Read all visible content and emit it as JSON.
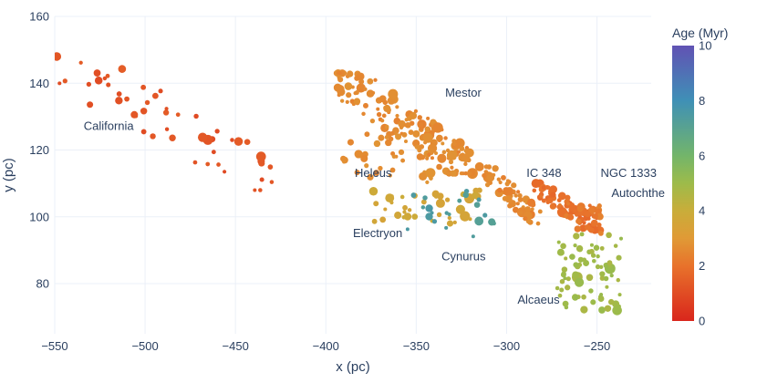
{
  "chart_data": {
    "type": "scatter",
    "title": "",
    "xlabel": "x (pc)",
    "ylabel": "y (pc)",
    "xlim": [
      -550,
      -220
    ],
    "ylim": [
      65,
      160
    ],
    "x_ticks": [
      -550,
      -500,
      -450,
      -400,
      -350,
      -300,
      -250
    ],
    "x_tick_labels": [
      "−550",
      "−500",
      "−450",
      "−400",
      "−350",
      "−300",
      "−250"
    ],
    "y_ticks": [
      80,
      100,
      120,
      140,
      160
    ],
    "y_tick_labels": [
      "80",
      "100",
      "120",
      "140",
      "160"
    ],
    "grid": true,
    "colorbar": {
      "title": "Age (Myr)",
      "range": [
        0,
        10
      ],
      "ticks": [
        0,
        2,
        4,
        6,
        8,
        10
      ],
      "tick_labels": [
        "0",
        "2",
        "4",
        "6",
        "8",
        "10"
      ],
      "colorscale": [
        [
          0.0,
          "#d9261c"
        ],
        [
          0.2,
          "#e8722b"
        ],
        [
          0.3,
          "#e09a36"
        ],
        [
          0.4,
          "#c9ad3a"
        ],
        [
          0.5,
          "#9dbb4a"
        ],
        [
          0.6,
          "#73b56a"
        ],
        [
          0.8,
          "#3f90b6"
        ],
        [
          1.0,
          "#6152b4"
        ]
      ]
    },
    "annotations": [
      {
        "text": "California",
        "x": -534,
        "y": 126
      },
      {
        "text": "Mestor",
        "x": -334,
        "y": 136
      },
      {
        "text": "Heleus",
        "x": -384,
        "y": 112
      },
      {
        "text": "IC 348",
        "x": -289,
        "y": 112
      },
      {
        "text": "NGC 1333",
        "x": -248,
        "y": 112
      },
      {
        "text": "Autochthe",
        "x": -242,
        "y": 106
      },
      {
        "text": "Electryon",
        "x": -385,
        "y": 94
      },
      {
        "text": "Cynurus",
        "x": -336,
        "y": 87
      },
      {
        "text": "Alcaeus",
        "x": -294,
        "y": 74
      }
    ],
    "clusters": [
      {
        "name": "California",
        "age": 1.2,
        "x_range": [
          -552,
          -426
        ],
        "y_range": [
          108,
          148
        ],
        "count": 55
      },
      {
        "name": "Mestor",
        "age": 2.6,
        "x_range": [
          -395,
          -318
        ],
        "y_range": [
          113,
          143
        ],
        "count": 170
      },
      {
        "name": "Heleus",
        "age": 2.7,
        "x_range": [
          -392,
          -340
        ],
        "y_range": [
          110,
          125
        ],
        "count": 35
      },
      {
        "name": "Electryon",
        "age": 3.7,
        "x_range": [
          -374,
          -315
        ],
        "y_range": [
          98,
          108
        ],
        "count": 40
      },
      {
        "name": "Cynurus",
        "age": 7.3,
        "x_range": [
          -360,
          -306
        ],
        "y_range": [
          93,
          108
        ],
        "count": 22
      },
      {
        "name": "IC 348",
        "age": 2.5,
        "x_range": [
          -315,
          -280
        ],
        "y_range": [
          98,
          115
        ],
        "count": 60
      },
      {
        "name": "NGC 1333",
        "age": 1.9,
        "x_range": [
          -285,
          -248
        ],
        "y_range": [
          96,
          110
        ],
        "count": 85
      },
      {
        "name": "Autochthe",
        "age": 2.2,
        "x_range": [
          -268,
          -246
        ],
        "y_range": [
          95,
          104
        ],
        "count": 22
      },
      {
        "name": "Alcaeus",
        "age": 4.9,
        "x_range": [
          -272,
          -236
        ],
        "y_range": [
          72,
          95
        ],
        "count": 75
      }
    ]
  }
}
